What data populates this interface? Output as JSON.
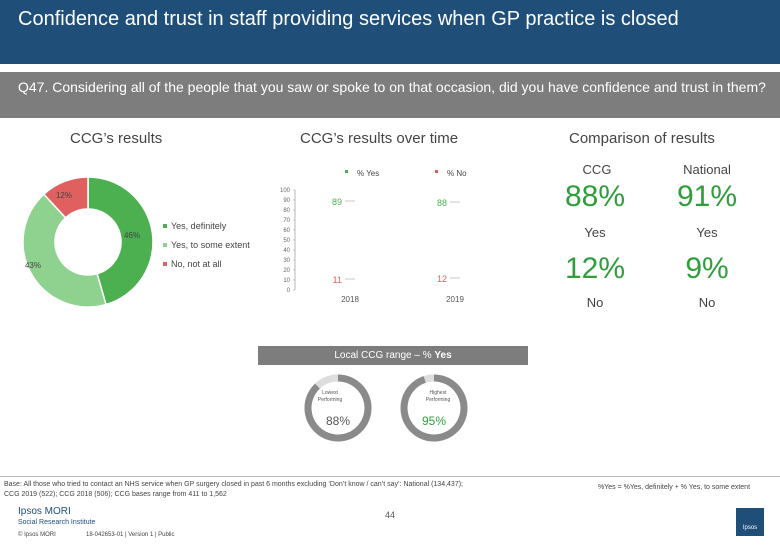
{
  "header": {
    "title": "Confidence and trust in staff providing services when GP practice is closed",
    "question": "Q47. Considering all of the people that you saw or spoke to on that occasion, did you have confidence and trust in them?"
  },
  "sections": {
    "ccg_results": "CCG’s results",
    "over_time": "CCG’s results over time",
    "comparison": "Comparison of results"
  },
  "donut": {
    "segments": [
      {
        "label": "Yes, definitely",
        "value": 46,
        "pct_label": "46%",
        "color": "#4caf50"
      },
      {
        "label": "Yes, to some extent",
        "value": 43,
        "pct_label": "43%",
        "color": "#8fd18f"
      },
      {
        "label": "No, not at all",
        "value": 12,
        "pct_label": "12%",
        "color": "#e06060"
      }
    ]
  },
  "chart_data": {
    "type": "line",
    "x": [
      "2018",
      "2019"
    ],
    "series": [
      {
        "name": "% Yes",
        "values": [
          89,
          88
        ],
        "color": "#4caf50"
      },
      {
        "name": "% No",
        "values": [
          11,
          12
        ],
        "color": "#e06060"
      }
    ],
    "ylim": [
      0,
      100
    ],
    "yticks": [
      "0",
      "10",
      "20",
      "30",
      "40",
      "50",
      "60",
      "70",
      "80",
      "90",
      "100"
    ],
    "value_labels": {
      "yes": [
        "89",
        "88"
      ],
      "no": [
        "11",
        "12"
      ]
    }
  },
  "comparison": {
    "ccg_header": "CCG",
    "national_header": "National",
    "ccg_yes": "88%",
    "national_yes": "91%",
    "yes_label": "Yes",
    "ccg_no": "12%",
    "national_no": "9%",
    "no_label": "No"
  },
  "range": {
    "title_prefix": "Local CCG range – % ",
    "title_bold": "Yes",
    "lowest_label_1": "Lowest",
    "lowest_label_2": "Performing",
    "lowest_value": "88%",
    "lowest_fraction": 0.88,
    "highest_label_1": "Highest",
    "highest_label_2": "Performing",
    "highest_value": "95%",
    "highest_fraction": 0.95
  },
  "footer": {
    "base_line1": "Base: All those who tried to contact an NHS service when GP surgery closed in past 6 months excluding ‘Don’t know / can’t say’: National (134,437);",
    "base_line2": "CCG 2019 (522); CCG 2018 (506); CCG bases range from 411 to 1,562",
    "note": "%Yes = %Yes, definitely + % Yes, to some extent",
    "page_number": "44",
    "logo_line1": "Ipsos MORI",
    "logo_line2": "Social Research Institute",
    "copyright": "© Ipsos MORI",
    "ref": "18-042653-01 | Version 1 | Public",
    "badge": "Ipsos"
  },
  "colors": {
    "header": "#1f4e79",
    "grey_bar": "#7d7d7d",
    "yes_green": "#2f9e3b",
    "no_red": "#e06060"
  }
}
